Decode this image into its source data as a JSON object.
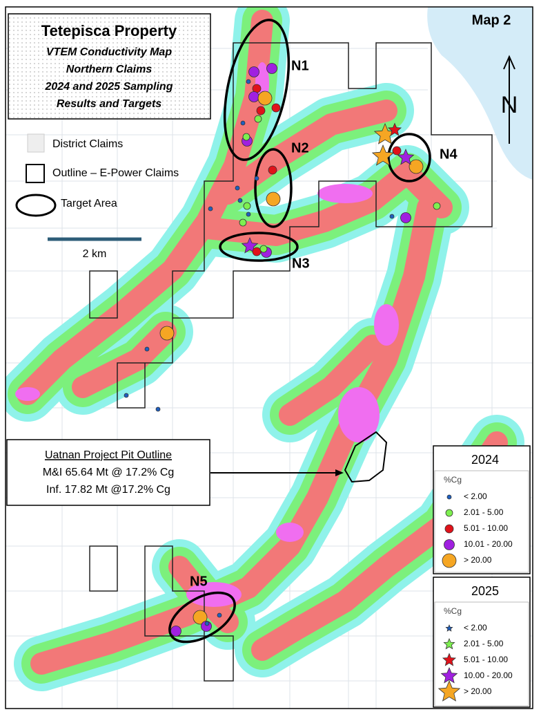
{
  "title_box": {
    "title": "Tetepisca Property",
    "lines": [
      "VTEM Conductivity Map",
      "Northern Claims",
      "2024 and 2025 Sampling",
      "Results and Targets"
    ]
  },
  "map_label": "Map 2",
  "north": "N",
  "key": {
    "items": [
      "District Claims",
      "Outline – E-Power Claims",
      "Target Area"
    ]
  },
  "scale": "2 km",
  "targets": [
    "N1",
    "N2",
    "N3",
    "N4",
    "N5"
  ],
  "callout": {
    "heading": "Uatnan Project Pit Outline",
    "lines": [
      "M&I 65.64 Mt @ 17.2% Cg",
      "Inf. 17.82 Mt @17.2% Cg"
    ]
  },
  "legends": [
    {
      "year": "2024",
      "unit": "%Cg",
      "classes": [
        "< 2.00",
        "2.01 - 5.00",
        "5.01 - 10.00",
        "10.01 - 20.00",
        "> 20.00"
      ]
    },
    {
      "year": "2025",
      "unit": "%Cg",
      "classes": [
        "< 2.00",
        "2.01 - 5.00",
        "5.01 - 10.00",
        "10.00 - 20.00",
        "> 20.00"
      ]
    }
  ]
}
